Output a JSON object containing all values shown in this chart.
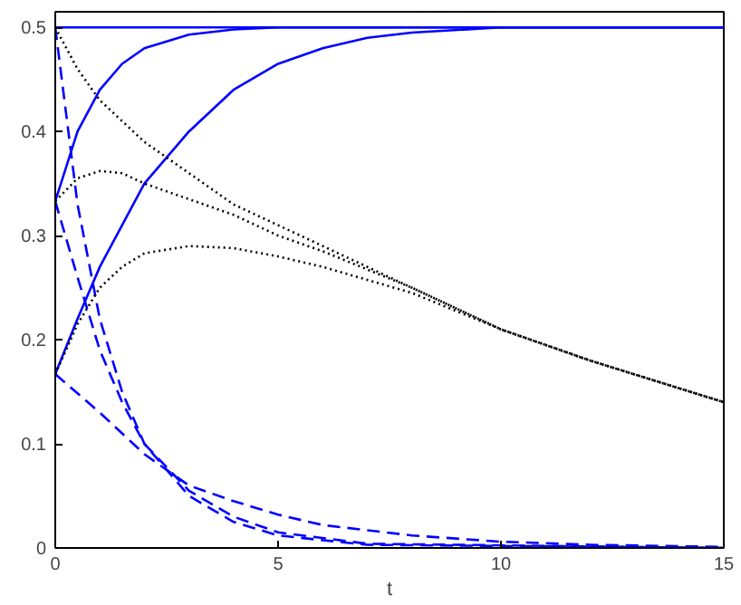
{
  "chart_data": {
    "type": "line",
    "xlabel": "t",
    "xlim": [
      0,
      15
    ],
    "ylim": [
      0,
      0.515
    ],
    "xticks": [
      0,
      5,
      10,
      15
    ],
    "yticks": [
      0,
      0.1,
      0.2,
      0.3,
      0.4,
      0.5
    ],
    "marker": "none",
    "series": [
      {
        "color": "#0000ff",
        "line_style": "solid",
        "x": [
          0,
          15
        ],
        "values": [
          0.5,
          0.5
        ]
      },
      {
        "color": "#0000ff",
        "line_style": "solid",
        "x": [
          0,
          0.5,
          1,
          1.5,
          2,
          3,
          4,
          5,
          15
        ],
        "values": [
          0.333,
          0.4,
          0.44,
          0.465,
          0.48,
          0.493,
          0.498,
          0.5,
          0.5
        ]
      },
      {
        "color": "#0000ff",
        "line_style": "solid",
        "x": [
          0,
          0.5,
          1,
          2,
          3,
          4,
          5,
          6,
          7,
          8,
          10,
          15
        ],
        "values": [
          0.167,
          0.22,
          0.27,
          0.35,
          0.4,
          0.44,
          0.465,
          0.48,
          0.49,
          0.495,
          0.5,
          0.5
        ]
      },
      {
        "color": "#0000ff",
        "line_style": "dashed",
        "x": [
          0,
          0.5,
          1,
          1.5,
          2,
          3,
          4,
          5,
          7,
          15
        ],
        "values": [
          0.5,
          0.33,
          0.22,
          0.15,
          0.1,
          0.05,
          0.025,
          0.012,
          0.003,
          0
        ]
      },
      {
        "color": "#0000ff",
        "line_style": "dashed",
        "x": [
          0,
          0.5,
          1,
          1.5,
          2,
          3,
          4,
          5,
          7,
          15
        ],
        "values": [
          0.333,
          0.26,
          0.19,
          0.14,
          0.1,
          0.055,
          0.03,
          0.015,
          0.004,
          0
        ]
      },
      {
        "color": "#0000ff",
        "line_style": "dashed",
        "x": [
          0,
          1,
          2,
          3,
          4,
          5,
          6,
          8,
          10,
          12,
          15
        ],
        "values": [
          0.167,
          0.13,
          0.09,
          0.06,
          0.045,
          0.032,
          0.022,
          0.012,
          0.006,
          0.003,
          0.001
        ]
      },
      {
        "color": "#000000",
        "line_style": "dotted",
        "x": [
          0,
          0.5,
          1,
          2,
          3,
          4,
          5,
          6,
          8,
          10,
          12,
          15
        ],
        "values": [
          0.5,
          0.46,
          0.43,
          0.39,
          0.36,
          0.33,
          0.31,
          0.29,
          0.25,
          0.21,
          0.18,
          0.14
        ]
      },
      {
        "color": "#000000",
        "line_style": "dotted",
        "x": [
          0,
          0.5,
          1,
          1.5,
          2,
          3,
          4,
          5,
          6,
          8,
          10,
          12,
          15
        ],
        "values": [
          0.333,
          0.355,
          0.362,
          0.36,
          0.35,
          0.335,
          0.32,
          0.3,
          0.285,
          0.25,
          0.21,
          0.18,
          0.14
        ]
      },
      {
        "color": "#000000",
        "line_style": "dotted",
        "x": [
          0,
          0.5,
          1,
          1.5,
          2,
          3,
          4,
          5,
          6,
          8,
          10,
          12,
          15
        ],
        "values": [
          0.167,
          0.215,
          0.25,
          0.27,
          0.283,
          0.29,
          0.288,
          0.28,
          0.27,
          0.245,
          0.21,
          0.18,
          0.14
        ]
      }
    ]
  }
}
